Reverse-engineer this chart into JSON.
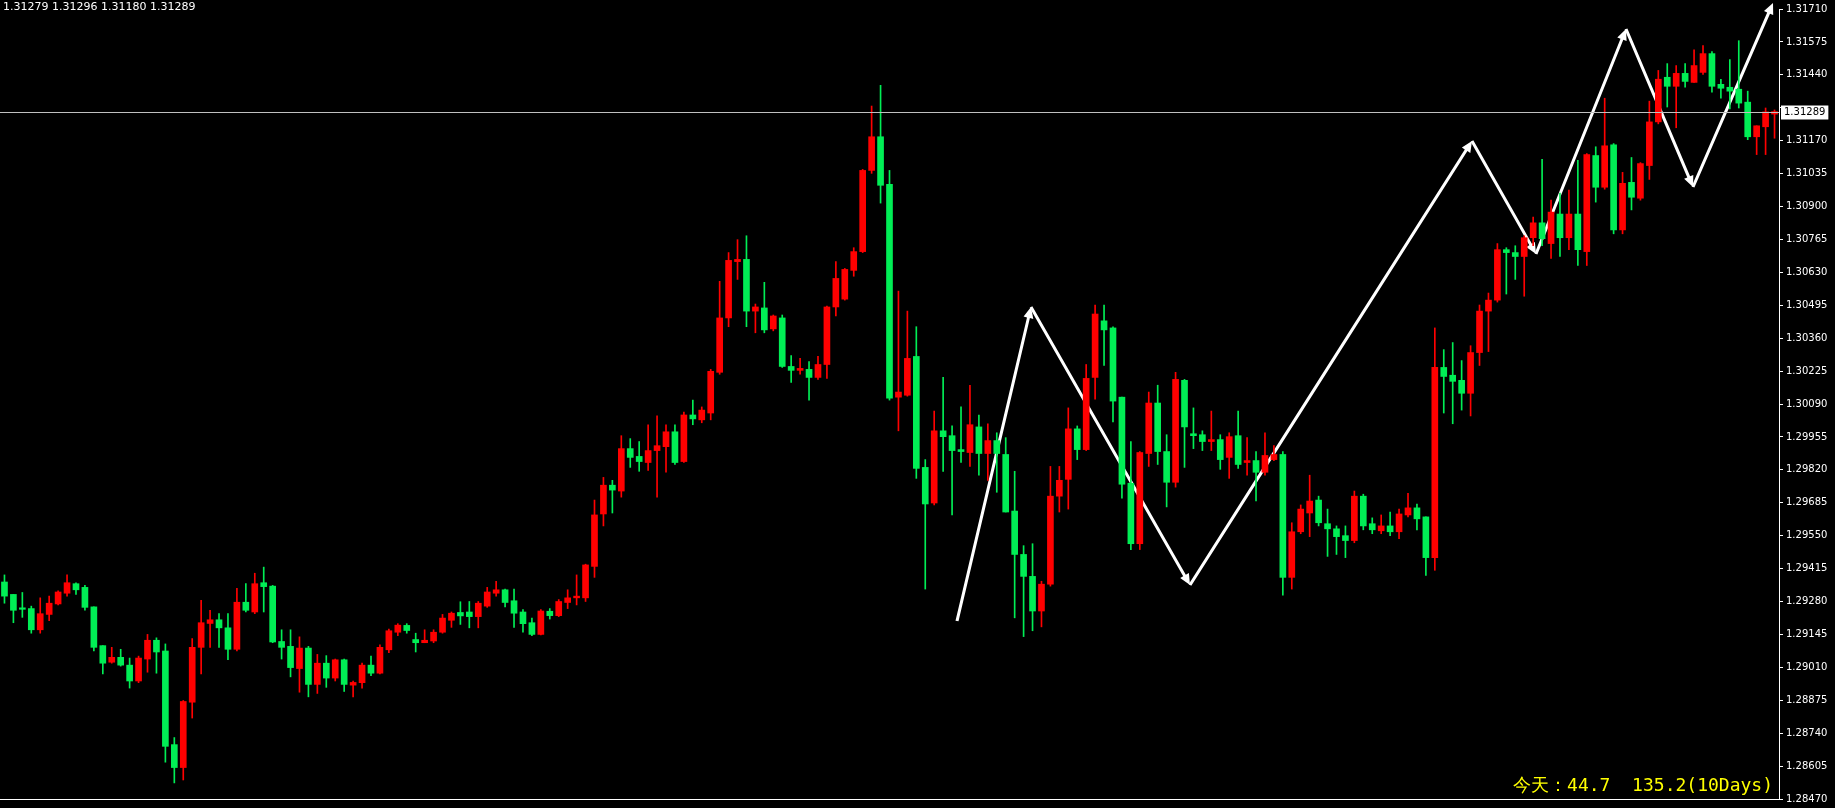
{
  "chart_data": {
    "type": "candlestick",
    "categories": [
      null,
      null,
      null,
      null,
      null,
      null,
      null,
      null,
      null,
      null,
      null,
      null,
      null,
      null,
      null,
      null,
      null,
      null,
      null,
      null,
      null,
      null,
      null,
      null,
      null,
      null,
      null,
      null,
      null,
      null,
      null,
      null,
      null,
      null,
      null,
      null,
      null,
      null,
      null,
      null,
      null,
      null,
      null,
      null,
      null,
      null,
      null,
      null,
      null,
      null,
      null,
      null,
      null,
      null,
      null,
      null,
      null,
      null,
      null,
      null,
      null,
      null,
      null,
      null,
      null,
      null,
      null,
      null,
      null,
      null,
      null,
      null,
      null,
      null,
      null,
      null,
      null,
      null,
      null,
      null,
      null,
      null,
      null,
      null,
      null,
      null,
      null,
      null,
      null,
      null,
      null,
      null,
      null,
      null,
      null,
      null,
      null,
      null,
      null,
      null,
      null,
      null,
      null,
      null,
      null,
      null,
      null,
      null,
      null,
      null,
      null,
      null,
      null,
      null,
      null,
      null,
      null,
      null,
      null,
      null,
      null,
      null,
      null,
      null,
      null,
      null,
      null,
      null,
      null,
      null,
      null,
      null,
      null,
      null,
      null,
      null,
      null,
      null,
      null,
      null,
      null,
      null,
      null,
      null,
      null,
      null,
      null,
      null,
      null,
      null,
      null,
      null,
      null,
      null,
      null,
      null,
      null,
      null,
      null,
      null,
      null,
      null,
      null,
      null,
      null,
      null,
      null,
      null,
      null,
      null,
      null,
      null,
      null,
      null,
      null,
      null,
      null,
      null,
      null,
      null,
      null,
      null,
      null,
      null,
      null,
      null,
      null,
      null,
      null,
      null,
      null,
      null,
      null,
      null,
      null,
      null,
      null,
      null,
      null
    ],
    "colors": [
      "#00ee55",
      "#00ee55",
      "#00ee55",
      "#00ee55",
      "#ff0000",
      "#ff0000",
      "#ff0000",
      "#ff0000",
      "#00ee55",
      "#00ee55",
      "#00ee55",
      "#00ee55",
      "#ff0000",
      "#00ee55",
      "#00ee55",
      "#ff0000",
      "#ff0000",
      "#00ee55",
      "#00ee55",
      "#00ee55",
      "#ff0000",
      "#ff0000",
      "#ff0000",
      "#ff0000",
      "#00ee55",
      "#00ee55",
      "#ff0000",
      "#00ee55",
      "#ff0000",
      "#00ee55",
      "#00ee55",
      "#00ee55",
      "#00ee55",
      "#ff0000",
      "#00ee55",
      "#ff0000",
      "#00ee55",
      "#ff0000",
      "#00ee55",
      "#ff0000",
      "#ff0000",
      "#00ee55",
      "#ff0000",
      "#ff0000",
      "#ff0000",
      "#00ee55",
      "#00ee55",
      "#ff0000",
      "#ff0000",
      "#ff0000",
      "#ff0000",
      "#00ee55",
      "#00ee55",
      "#ff0000",
      "#ff0000",
      "#ff0000",
      "#00ee55",
      "#00ee55",
      "#00ee55",
      "#00ee55",
      "#ff0000",
      "#00ee55",
      "#ff0000",
      "#ff0000",
      "#ff0000",
      "#ff0000",
      "#ff0000",
      "#ff0000",
      "#00ee55",
      "#ff0000",
      "#00ee55",
      "#00ee55",
      "#ff0000",
      "#ff0000",
      "#ff0000",
      "#00ee55",
      "#ff0000",
      "#00ee55",
      "#ff0000",
      "#ff0000",
      "#ff0000",
      "#ff0000",
      "#ff0000",
      "#00ee55",
      "#ff0000",
      "#00ee55",
      "#ff0000",
      "#00ee55",
      "#00ee55",
      "#ff0000",
      "#00ee55",
      "#ff0000",
      "#ff0000",
      "#ff0000",
      "#ff0000",
      "#ff0000",
      "#ff0000",
      "#ff0000",
      "#00ee55",
      "#00ee55",
      "#ff0000",
      "#ff0000",
      "#00ee55",
      "#00ee55",
      "#ff0000",
      "#00ee55",
      "#00ee55",
      "#00ee55",
      "#ff0000",
      "#00ee55",
      "#ff0000",
      "#00ee55",
      "#00ee55",
      "#00ee55",
      "#00ee55",
      "#00ee55",
      "#ff0000",
      "#ff0000",
      "#ff0000",
      "#ff0000",
      "#00ee55",
      "#ff0000",
      "#ff0000",
      "#00ee55",
      "#00ee55",
      "#00ee55",
      "#00ee55",
      "#ff0000",
      "#ff0000",
      "#00ee55",
      "#00ee55",
      "#ff0000",
      "#00ee55",
      "#00ee55",
      "#00ee55",
      "#ff0000",
      "#00ee55",
      "#ff0000",
      "#00ee55",
      "#ff0000",
      "#00ee55",
      "#ff0000",
      "#ff0000",
      "#00ee55",
      "#ff0000",
      "#ff0000",
      "#ff0000",
      "#00ee55",
      "#00ee55",
      "#00ee55",
      "#00ee55",
      "#ff0000",
      "#00ee55",
      "#00ee55",
      "#ff0000",
      "#00ee55",
      "#ff0000",
      "#ff0000",
      "#00ee55",
      "#00ee55",
      "#ff0000",
      "#00ee55",
      "#00ee55",
      "#00ee55",
      "#ff0000",
      "#ff0000",
      "#ff0000",
      "#ff0000",
      "#00ee55",
      "#00ee55",
      "#ff0000",
      "#ff0000",
      "#00ee55",
      "#ff0000",
      "#00ee55",
      "#ff0000",
      "#00ee55",
      "#ff0000",
      "#00ee55",
      "#ff0000",
      "#00ee55",
      "#ff0000",
      "#00ee55",
      "#ff0000",
      "#ff0000",
      "#ff0000",
      "#00ee55",
      "#ff0000",
      "#00ee55",
      "#ff0000",
      "#ff0000",
      "#00ee55",
      "#00ee55",
      "#00ee55",
      "#00ee55",
      "#00ee55",
      "#ff0000",
      "#ff0000",
      "#ff0000"
    ],
    "ylim": [
      1.2847,
      1.3171
    ],
    "yticks": [
      {
        "value": 1.2847,
        "label": "1.28470"
      },
      {
        "value": 1.28605,
        "label": "1.28605"
      },
      {
        "value": 1.2874,
        "label": "1.28740"
      },
      {
        "value": 1.28875,
        "label": "1.28875"
      },
      {
        "value": 1.2901,
        "label": "1.29010"
      },
      {
        "value": 1.29145,
        "label": "1.29145"
      },
      {
        "value": 1.2928,
        "label": "1.29280"
      },
      {
        "value": 1.29415,
        "label": "1.29415"
      },
      {
        "value": 1.2955,
        "label": "1.29550"
      },
      {
        "value": 1.29685,
        "label": "1.29685"
      },
      {
        "value": 1.2982,
        "label": "1.29820"
      },
      {
        "value": 1.29955,
        "label": "1.29955"
      },
      {
        "value": 1.3009,
        "label": "1.30090"
      },
      {
        "value": 1.30225,
        "label": "1.30225"
      },
      {
        "value": 1.3036,
        "label": "1.30360"
      },
      {
        "value": 1.30495,
        "label": "1.30495"
      },
      {
        "value": 1.3063,
        "label": "1.30630"
      },
      {
        "value": 1.30765,
        "label": "1.30765"
      },
      {
        "value": 1.309,
        "label": "1.30900"
      },
      {
        "value": 1.31035,
        "label": "1.31035"
      },
      {
        "value": 1.3117,
        "label": "1.31170"
      },
      {
        "value": 1.31305,
        "label": null
      },
      {
        "value": 1.3144,
        "label": "1.31440"
      },
      {
        "value": 1.31575,
        "label": "1.31575"
      },
      {
        "value": 1.3171,
        "label": "1.31710"
      }
    ],
    "tick_labels": "y",
    "grid": false,
    "legend": false,
    "ref_lines": [
      {
        "axis": "y",
        "value": 1.31289,
        "label": "1.31289",
        "color": "#c0c0c0"
      }
    ],
    "annotations": [
      "1.31279 1.31296 1.31180 1.31289",
      "今天：44.7  135.2(10Days)"
    ],
    "ohlc": [
      [
        1.2936,
        1.29389,
        1.29273,
        1.29302
      ],
      [
        1.29309,
        1.29309,
        1.29193,
        1.29244
      ],
      [
        1.29254,
        1.29317,
        1.29215,
        1.29248
      ],
      [
        1.29251,
        1.29261,
        1.2915,
        1.29164
      ],
      [
        1.29164,
        1.29295,
        1.2915,
        1.2923
      ],
      [
        1.29227,
        1.29302,
        1.29201,
        1.29273
      ],
      [
        1.2927,
        1.29324,
        1.29266,
        1.29319
      ],
      [
        1.29314,
        1.29389,
        1.29302,
        1.29357
      ],
      [
        1.29353,
        1.29357,
        1.29309,
        1.29328
      ],
      [
        1.29338,
        1.29346,
        1.29244,
        1.29256
      ],
      [
        1.29258,
        1.29258,
        1.29077,
        1.29092
      ],
      [
        1.29099,
        1.29099,
        1.28983,
        1.29027
      ],
      [
        1.29031,
        1.29092,
        1.29027,
        1.29051
      ],
      [
        1.29051,
        1.29084,
        1.29015,
        1.29019
      ],
      [
        1.29019,
        1.29048,
        1.28925,
        1.28954
      ],
      [
        1.28954,
        1.29056,
        1.28947,
        1.29048
      ],
      [
        1.29044,
        1.29145,
        1.2899,
        1.29121
      ],
      [
        1.29121,
        1.29131,
        1.28986,
        1.29073
      ],
      [
        1.29077,
        1.29106,
        1.28621,
        1.28686
      ],
      [
        1.28693,
        1.28722,
        1.28536,
        1.28599
      ],
      [
        1.28599,
        1.28874,
        1.28548,
        1.2887
      ],
      [
        1.28867,
        1.29128,
        1.28802,
        1.29092
      ],
      [
        1.29092,
        1.29285,
        1.28983,
        1.29193
      ],
      [
        1.2919,
        1.29244,
        1.29092,
        1.29205
      ],
      [
        1.29205,
        1.2923,
        1.29092,
        1.29172
      ],
      [
        1.29172,
        1.2923,
        1.29041,
        1.29084
      ],
      [
        1.29084,
        1.29334,
        1.29077,
        1.29277
      ],
      [
        1.29277,
        1.29353,
        1.29237,
        1.29244
      ],
      [
        1.29237,
        1.29396,
        1.2923,
        1.29353
      ],
      [
        1.29357,
        1.29421,
        1.29237,
        1.29341
      ],
      [
        1.29343,
        1.29346,
        1.29111,
        1.29114
      ],
      [
        1.29116,
        1.29164,
        1.29044,
        1.29092
      ],
      [
        1.29096,
        1.29164,
        1.28971,
        1.29009
      ],
      [
        1.29005,
        1.29135,
        1.28908,
        1.29089
      ],
      [
        1.29089,
        1.29096,
        1.28889,
        1.2894
      ],
      [
        1.2894,
        1.29063,
        1.28903,
        1.29027
      ],
      [
        1.29027,
        1.29058,
        1.28928,
        1.28966
      ],
      [
        1.28966,
        1.29044,
        1.28954,
        1.29041
      ],
      [
        1.29041,
        1.29044,
        1.28911,
        1.2894
      ],
      [
        1.28937,
        1.28954,
        1.28889,
        1.28948
      ],
      [
        1.28947,
        1.29027,
        1.28925,
        1.29019
      ],
      [
        1.29019,
        1.29056,
        1.28976,
        1.28986
      ],
      [
        1.28986,
        1.29102,
        1.28983,
        1.29092
      ],
      [
        1.29082,
        1.29167,
        1.2907,
        1.2916
      ],
      [
        1.29154,
        1.29189,
        1.2914,
        1.29183
      ],
      [
        1.29182,
        1.29189,
        1.2915,
        1.29161
      ],
      [
        1.29124,
        1.2915,
        1.29073,
        1.29111
      ],
      [
        1.29111,
        1.29164,
        1.29111,
        1.29121
      ],
      [
        1.29118,
        1.29164,
        1.29111,
        1.29154
      ],
      [
        1.29154,
        1.29227,
        1.2915,
        1.29212
      ],
      [
        1.29203,
        1.29237,
        1.29174,
        1.29232
      ],
      [
        1.29235,
        1.29279,
        1.29186,
        1.29221
      ],
      [
        1.29237,
        1.2928,
        1.29172,
        1.29218
      ],
      [
        1.29218,
        1.2928,
        1.29172,
        1.29273
      ],
      [
        1.29261,
        1.29338,
        1.29256,
        1.29319
      ],
      [
        1.29314,
        1.29363,
        1.29302,
        1.29328
      ],
      [
        1.29328,
        1.29331,
        1.29258,
        1.29276
      ],
      [
        1.29283,
        1.29331,
        1.29174,
        1.29232
      ],
      [
        1.29237,
        1.29247,
        1.29154,
        1.29189
      ],
      [
        1.29193,
        1.29212,
        1.2914,
        1.29145
      ],
      [
        1.29145,
        1.29247,
        1.29143,
        1.29241
      ],
      [
        1.2924,
        1.29251,
        1.29208,
        1.29222
      ],
      [
        1.29222,
        1.29288,
        1.29218,
        1.2928
      ],
      [
        1.29276,
        1.29328,
        1.29251,
        1.29295
      ],
      [
        1.29295,
        1.29389,
        1.29266,
        1.29302
      ],
      [
        1.29295,
        1.29433,
        1.2928,
        1.2943
      ],
      [
        1.29424,
        1.29696,
        1.29379,
        1.29635
      ],
      [
        1.29639,
        1.29789,
        1.2959,
        1.29757
      ],
      [
        1.29757,
        1.29777,
        1.29643,
        1.29737
      ],
      [
        1.29733,
        1.2996,
        1.29708,
        1.29907
      ],
      [
        1.29907,
        1.29948,
        1.2983,
        1.29871
      ],
      [
        1.29875,
        1.29936,
        1.29814,
        1.29854
      ],
      [
        1.2985,
        1.30005,
        1.29818,
        1.29899
      ],
      [
        1.29899,
        1.30041,
        1.29708,
        1.29919
      ],
      [
        1.29915,
        1.30005,
        1.2981,
        1.29976
      ],
      [
        1.29976,
        1.30005,
        1.29842,
        1.2985
      ],
      [
        1.29854,
        1.30057,
        1.2985,
        1.30045
      ],
      [
        1.30045,
        1.30106,
        1.30005,
        1.30029
      ],
      [
        1.30025,
        1.30078,
        1.30013,
        1.30065
      ],
      [
        1.30053,
        1.30232,
        1.30025,
        1.30224
      ],
      [
        1.3022,
        1.30593,
        1.30212,
        1.30443
      ],
      [
        1.30443,
        1.30711,
        1.30407,
        1.30679
      ],
      [
        1.30674,
        1.30764,
        1.30601,
        1.30683
      ],
      [
        1.30683,
        1.3078,
        1.30407,
        1.30471
      ],
      [
        1.30471,
        1.305,
        1.30382,
        1.30488
      ],
      [
        1.30484,
        1.30589,
        1.30382,
        1.30394
      ],
      [
        1.30398,
        1.30455,
        1.3039,
        1.30451
      ],
      [
        1.30443,
        1.30455,
        1.3024,
        1.30244
      ],
      [
        1.30244,
        1.30289,
        1.30179,
        1.30228
      ],
      [
        1.30228,
        1.30277,
        1.30212,
        1.30236
      ],
      [
        1.30232,
        1.30264,
        1.30106,
        1.30199
      ],
      [
        1.30199,
        1.30285,
        1.30191,
        1.30252
      ],
      [
        1.30252,
        1.30492,
        1.30195,
        1.30488
      ],
      [
        1.30488,
        1.30674,
        1.30451,
        1.30605
      ],
      [
        1.3052,
        1.30646,
        1.30516,
        1.30642
      ],
      [
        1.30638,
        1.30731,
        1.30614,
        1.30715
      ],
      [
        1.30715,
        1.31052,
        1.30711,
        1.31048
      ],
      [
        1.31048,
        1.31312,
        1.31036,
        1.31186
      ],
      [
        1.31186,
        1.31397,
        1.30914,
        1.30987
      ],
      [
        1.30991,
        1.31048,
        1.30106,
        1.30114
      ],
      [
        1.30118,
        1.30553,
        1.2998,
        1.30139
      ],
      [
        1.30126,
        1.30471,
        1.30122,
        1.30277
      ],
      [
        1.30285,
        1.30407,
        1.29785,
        1.29826
      ],
      [
        1.2983,
        1.29862,
        1.29331,
        1.2968
      ],
      [
        1.29684,
        1.30061,
        1.29676,
        1.2998
      ],
      [
        1.2998,
        1.30199,
        1.29814,
        1.29956
      ],
      [
        1.2996,
        1.3,
        1.29635,
        1.29899
      ],
      [
        1.29903,
        1.30078,
        1.2985,
        1.29895
      ],
      [
        1.29891,
        1.30167,
        1.29834,
        1.30005
      ],
      [
        1.29996,
        1.30045,
        1.29798,
        1.29887
      ],
      [
        1.29887,
        1.30009,
        1.29777,
        1.2994
      ],
      [
        1.2994,
        1.29972,
        1.29728,
        1.29887
      ],
      [
        1.29883,
        1.29952,
        1.29647,
        1.29647
      ],
      [
        1.29651,
        1.29814,
        1.29213,
        1.29473
      ],
      [
        1.29473,
        1.29509,
        1.29136,
        1.29383
      ],
      [
        1.29383,
        1.29517,
        1.2916,
        1.29241
      ],
      [
        1.29241,
        1.29363,
        1.29176,
        1.29351
      ],
      [
        1.29351,
        1.29834,
        1.29343,
        1.29712
      ],
      [
        1.29712,
        1.29834,
        1.29647,
        1.29777
      ],
      [
        1.29781,
        1.30074,
        1.29659,
        1.29988
      ],
      [
        1.29988,
        1.3,
        1.29862,
        1.29903
      ],
      [
        1.29903,
        1.30252,
        1.29899,
        1.30195
      ],
      [
        1.30199,
        1.30496,
        1.3011,
        1.30459
      ],
      [
        1.30431,
        1.30496,
        1.30248,
        1.30394
      ],
      [
        1.30402,
        1.30407,
        1.30017,
        1.30102
      ],
      [
        1.30118,
        1.30118,
        1.29704,
        1.29761
      ],
      [
        1.29765,
        1.29936,
        1.29493,
        1.29517
      ],
      [
        1.29517,
        1.29895,
        1.29493,
        1.29891
      ],
      [
        1.29887,
        1.30139,
        1.29834,
        1.30094
      ],
      [
        1.30094,
        1.30167,
        1.29842,
        1.29895
      ],
      [
        1.29895,
        1.29964,
        1.29668,
        1.29769
      ],
      [
        1.29769,
        1.3022,
        1.29749,
        1.30191
      ],
      [
        1.30187,
        1.30191,
        1.2983,
        1.29996
      ],
      [
        1.29968,
        1.30074,
        1.29907,
        1.2996
      ],
      [
        1.29964,
        1.2998,
        1.29899,
        1.29936
      ],
      [
        1.29936,
        1.30061,
        1.29899,
        1.29944
      ],
      [
        1.29944,
        1.29964,
        1.29822,
        1.29862
      ],
      [
        1.29871,
        1.29972,
        1.29785,
        1.29956
      ],
      [
        1.2996,
        1.30061,
        1.29826,
        1.29842
      ],
      [
        1.2985,
        1.29952,
        1.29798,
        1.29858
      ],
      [
        1.29858,
        1.29895,
        1.29692,
        1.2981
      ],
      [
        1.2981,
        1.29972,
        1.29798,
        1.29879
      ],
      [
        1.29862,
        1.29919,
        1.29858,
        1.29883
      ],
      [
        1.29883,
        1.29895,
        1.29306,
        1.29379
      ],
      [
        1.29379,
        1.29603,
        1.29331,
        1.29566
      ],
      [
        1.29566,
        1.29676,
        1.29558,
        1.29659
      ],
      [
        1.29643,
        1.29798,
        1.29546,
        1.29692
      ],
      [
        1.29696,
        1.29712,
        1.2959,
        1.29603
      ],
      [
        1.29599,
        1.29659,
        1.29465,
        1.29578
      ],
      [
        1.29578,
        1.2959,
        1.29473,
        1.29546
      ],
      [
        1.2955,
        1.2959,
        1.2946,
        1.2953
      ],
      [
        1.2953,
        1.29733,
        1.29521,
        1.29712
      ],
      [
        1.29712,
        1.2972,
        1.29574,
        1.2959
      ],
      [
        1.29599,
        1.29623,
        1.29558,
        1.29574
      ],
      [
        1.2957,
        1.29635,
        1.29558,
        1.2959
      ],
      [
        1.2959,
        1.29647,
        1.2955,
        1.29566
      ],
      [
        1.29566,
        1.29659,
        1.29538,
        1.29639
      ],
      [
        1.29635,
        1.29724,
        1.29627,
        1.29664
      ],
      [
        1.29664,
        1.2968,
        1.29574,
        1.29619
      ],
      [
        1.29627,
        1.29627,
        1.29387,
        1.2946
      ],
      [
        1.2946,
        1.30402,
        1.29408,
        1.3024
      ],
      [
        1.3024,
        1.30313,
        1.30053,
        1.30203
      ],
      [
        1.30208,
        1.30342,
        1.30009,
        1.30183
      ],
      [
        1.30187,
        1.30268,
        1.30065,
        1.30134
      ],
      [
        1.30134,
        1.30329,
        1.30041,
        1.30301
      ],
      [
        1.30301,
        1.30496,
        1.30248,
        1.30471
      ],
      [
        1.30471,
        1.30545,
        1.30305,
        1.30516
      ],
      [
        1.30516,
        1.30748,
        1.30508,
        1.30723
      ],
      [
        1.30723,
        1.30731,
        1.30541,
        1.30711
      ],
      [
        1.30711,
        1.30739,
        1.30601,
        1.30695
      ],
      [
        1.30695,
        1.3078,
        1.30532,
        1.30772
      ],
      [
        1.30772,
        1.30857,
        1.30739,
        1.30833
      ],
      [
        1.30833,
        1.31093,
        1.30739,
        1.30768
      ],
      [
        1.30748,
        1.30926,
        1.30687,
        1.30877
      ],
      [
        1.30869,
        1.30955,
        1.30695,
        1.30772
      ],
      [
        1.30772,
        1.30967,
        1.30723,
        1.30869
      ],
      [
        1.30869,
        1.31089,
        1.30658,
        1.30723
      ],
      [
        1.30715,
        1.31117,
        1.30658,
        1.31113
      ],
      [
        1.31109,
        1.31145,
        1.30918,
        1.30979
      ],
      [
        1.30979,
        1.31344,
        1.30971,
        1.31149
      ],
      [
        1.31153,
        1.31158,
        1.30788,
        1.30804
      ],
      [
        1.30804,
        1.3104,
        1.30788,
        1.30995
      ],
      [
        1.30999,
        1.31101,
        1.30886,
        1.30938
      ],
      [
        1.30934,
        1.3108,
        1.30926,
        1.31076
      ],
      [
        1.31068,
        1.31332,
        1.31011,
        1.31247
      ],
      [
        1.31247,
        1.31458,
        1.31239,
        1.31422
      ],
      [
        1.3143,
        1.31486,
        1.31308,
        1.31393
      ],
      [
        1.31393,
        1.31478,
        1.31223,
        1.31446
      ],
      [
        1.31446,
        1.31486,
        1.31389,
        1.31413
      ],
      [
        1.31409,
        1.31543,
        1.31409,
        1.31478
      ],
      [
        1.3145,
        1.3156,
        1.31442,
        1.31527
      ],
      [
        1.31527,
        1.31535,
        1.31369,
        1.31393
      ],
      [
        1.31401,
        1.31422,
        1.31344,
        1.31385
      ],
      [
        1.31389,
        1.31503,
        1.313,
        1.31373
      ],
      [
        1.31381,
        1.3158,
        1.31304,
        1.31324
      ],
      [
        1.31328,
        1.31373,
        1.31174,
        1.31186
      ],
      [
        1.31186,
        1.31231,
        1.31113,
        1.31231
      ],
      [
        1.31227,
        1.31304,
        1.31113,
        1.31288
      ],
      [
        1.31279,
        1.31296,
        1.3118,
        1.31289
      ]
    ]
  }
}
